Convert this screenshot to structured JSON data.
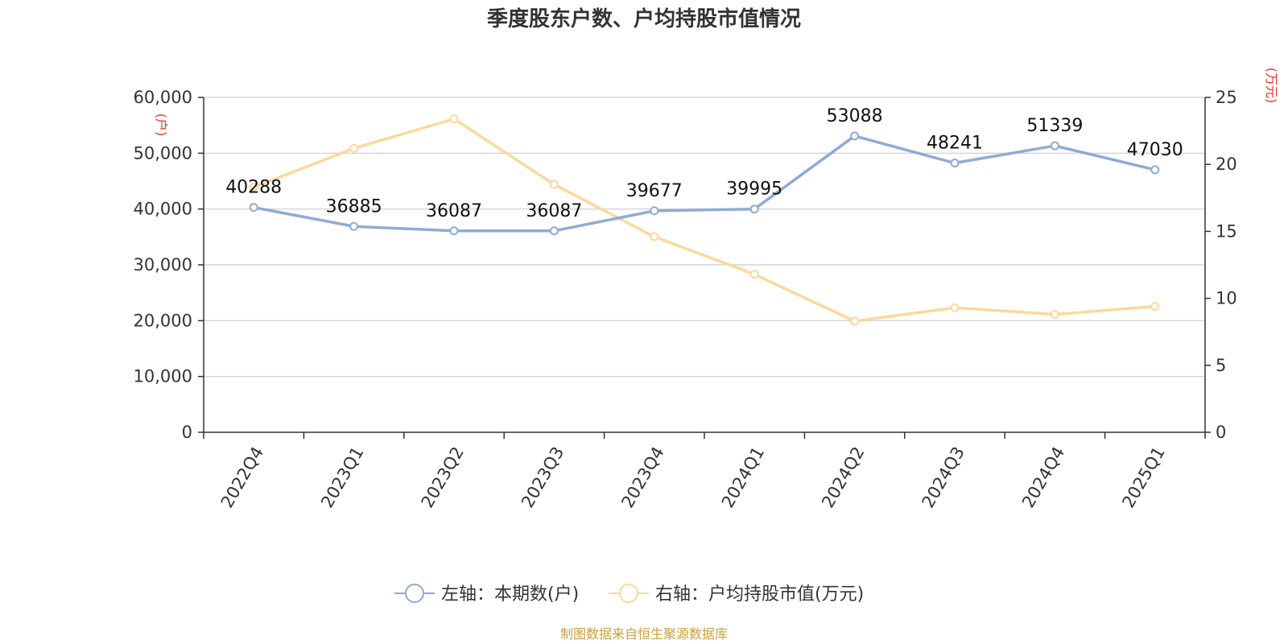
{
  "chart_data": {
    "type": "line",
    "title": "季度股东户数、户均持股市值情况",
    "categories": [
      "2022Q4",
      "2023Q1",
      "2023Q2",
      "2023Q3",
      "2023Q4",
      "2024Q1",
      "2024Q2",
      "2024Q3",
      "2024Q4",
      "2025Q1"
    ],
    "series": [
      {
        "name": "左轴：本期数(户)",
        "axis": "left",
        "color": "#8eabd8",
        "values": [
          40288,
          36885,
          36087,
          36087,
          39677,
          39995,
          53088,
          48241,
          51339,
          47030
        ],
        "labels": [
          "40288",
          "36885",
          "36087",
          "36087",
          "39677",
          "39995",
          "53088",
          "48241",
          "51339",
          "47030"
        ]
      },
      {
        "name": "右轴：户均持股市值(万元)",
        "axis": "right",
        "color": "#fdd89a",
        "values": [
          18.3,
          21.2,
          23.4,
          18.5,
          14.6,
          11.8,
          8.3,
          9.3,
          8.8,
          9.4
        ]
      }
    ],
    "y_left": {
      "min": 0,
      "max": 60000,
      "ticks": [
        "0",
        "10,000",
        "20,000",
        "30,000",
        "40,000",
        "50,000",
        "60,000"
      ],
      "unit": "(户)"
    },
    "y_right": {
      "min": 0,
      "max": 25,
      "ticks": [
        "0",
        "5",
        "10",
        "15",
        "20",
        "25"
      ],
      "unit": "(万元)"
    },
    "grid": true,
    "legend_position": "bottom"
  },
  "colors": {
    "unit": "#e8312a",
    "source": "#c9a03a",
    "grid": "#cccccc",
    "axis": "#333333"
  },
  "source": "制图数据来自恒生聚源数据库"
}
